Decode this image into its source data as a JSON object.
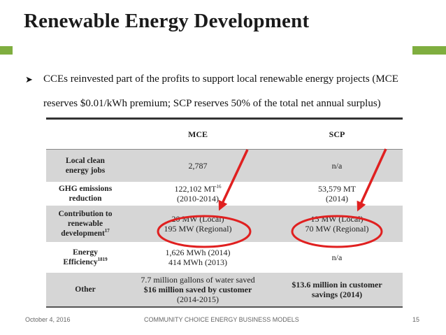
{
  "title": "Renewable Energy Development",
  "bullet": {
    "line1": "CCEs reinvested part of the profits to support local renewable energy projects (MCE",
    "line2": "reserves $0.01/kWh premium; SCP reserves 50% of the total net annual surplus)"
  },
  "table": {
    "headers": [
      "",
      "MCE",
      "SCP"
    ],
    "rows": [
      {
        "label": [
          "Local clean",
          "energy jobs"
        ],
        "sup": "",
        "mce": [
          "2,787"
        ],
        "mce_sup": "",
        "scp": [
          "n/a"
        ]
      },
      {
        "label": [
          "GHG emissions",
          "reduction"
        ],
        "sup": "",
        "mce": [
          "122,102 MT",
          "(2010-2014)"
        ],
        "mce_sup": "16",
        "scp": [
          "53,579 MT",
          "(2014)"
        ]
      },
      {
        "label": [
          "Contribution to",
          "renewable",
          "development"
        ],
        "sup": "17",
        "mce": [
          "20 MW (Local)",
          "195 MW (Regional)"
        ],
        "mce_sup": "",
        "scp": [
          "15 MW (Local)",
          "70 MW (Regional)"
        ]
      },
      {
        "label": [
          "Energy",
          "Efficiency"
        ],
        "sup": "1819",
        "mce": [
          "1,626 MWh (2014)",
          "414 MWh (2013)"
        ],
        "mce_sup": "",
        "scp": [
          "n/a"
        ]
      },
      {
        "label": [
          "Other"
        ],
        "sup": "",
        "mce": [
          "7.7 million gallons of water saved",
          "$16 million saved by customer",
          "(2014-2015)"
        ],
        "mce_sup": "",
        "scp": [
          "$13.6 million in customer",
          "savings (2014)"
        ]
      }
    ]
  },
  "footer": {
    "date": "October 4, 2016",
    "center": "COMMUNITY CHOICE ENERGY BUSINESS MODELS",
    "page": "15"
  },
  "colors": {
    "accent_bar": "#7fae3f",
    "annotation": "#e02020",
    "shade": "#d6d6d6"
  }
}
